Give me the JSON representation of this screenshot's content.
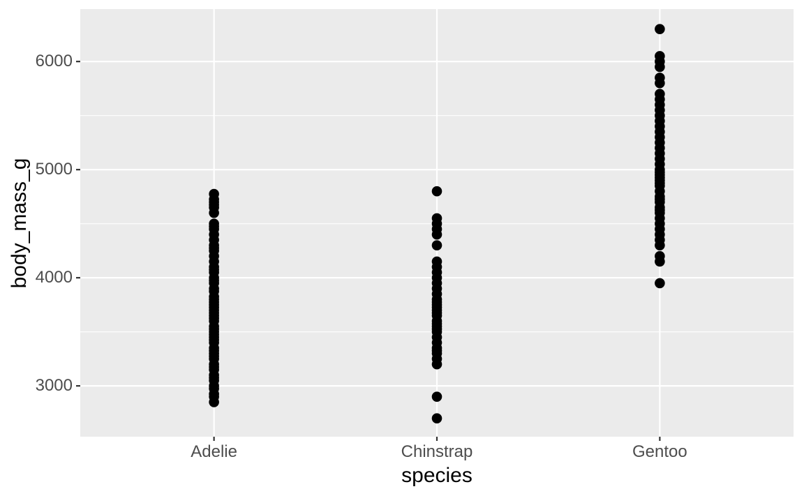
{
  "figure": {
    "background_color": "#FFFFFF"
  },
  "chart_data": {
    "type": "scatter",
    "title": "",
    "xlabel": "species",
    "ylabel": "body_mass_g",
    "categories": [
      "Adelie",
      "Chinstrap",
      "Gentoo"
    ],
    "y_ticks": [
      3000,
      4000,
      5000,
      6000
    ],
    "y_tick_labels": [
      "3000",
      "4000",
      "5000",
      "6000"
    ],
    "y_minor_gridlines": [
      3500,
      4500,
      5500
    ],
    "ylim": [
      2530,
      6485
    ],
    "grid": "major-and-minor",
    "legend_position": "none",
    "panel_background": "#EBEBEB",
    "gridline_color": "#FFFFFF",
    "point_color": "#000000",
    "tick_mark_color": "#333333",
    "tick_label_color": "#4D4D4D",
    "series": [
      {
        "name": "Adelie",
        "values": [
          2850,
          2900,
          2925,
          2975,
          3000,
          3050,
          3075,
          3100,
          3150,
          3175,
          3200,
          3250,
          3275,
          3300,
          3325,
          3350,
          3400,
          3425,
          3450,
          3475,
          3500,
          3525,
          3550,
          3600,
          3625,
          3650,
          3675,
          3700,
          3725,
          3750,
          3775,
          3800,
          3825,
          3875,
          3900,
          3950,
          3975,
          4000,
          4050,
          4075,
          4100,
          4150,
          4200,
          4250,
          4275,
          4300,
          4350,
          4400,
          4450,
          4475,
          4500,
          4600,
          4650,
          4675,
          4700,
          4725,
          4775
        ]
      },
      {
        "name": "Chinstrap",
        "values": [
          2700,
          2900,
          3200,
          3250,
          3300,
          3325,
          3350,
          3400,
          3450,
          3500,
          3525,
          3550,
          3575,
          3600,
          3650,
          3675,
          3700,
          3725,
          3750,
          3775,
          3800,
          3850,
          3900,
          3950,
          4000,
          4050,
          4100,
          4150,
          4300,
          4400,
          4450,
          4500,
          4550,
          4800
        ]
      },
      {
        "name": "Gentoo",
        "values": [
          3950,
          4150,
          4200,
          4300,
          4350,
          4400,
          4450,
          4500,
          4550,
          4600,
          4625,
          4650,
          4700,
          4725,
          4750,
          4800,
          4850,
          4875,
          4900,
          4925,
          4950,
          4975,
          5000,
          5050,
          5100,
          5150,
          5200,
          5250,
          5300,
          5350,
          5400,
          5450,
          5500,
          5550,
          5600,
          5650,
          5700,
          5800,
          5850,
          5950,
          6000,
          6050,
          6300
        ]
      }
    ]
  }
}
